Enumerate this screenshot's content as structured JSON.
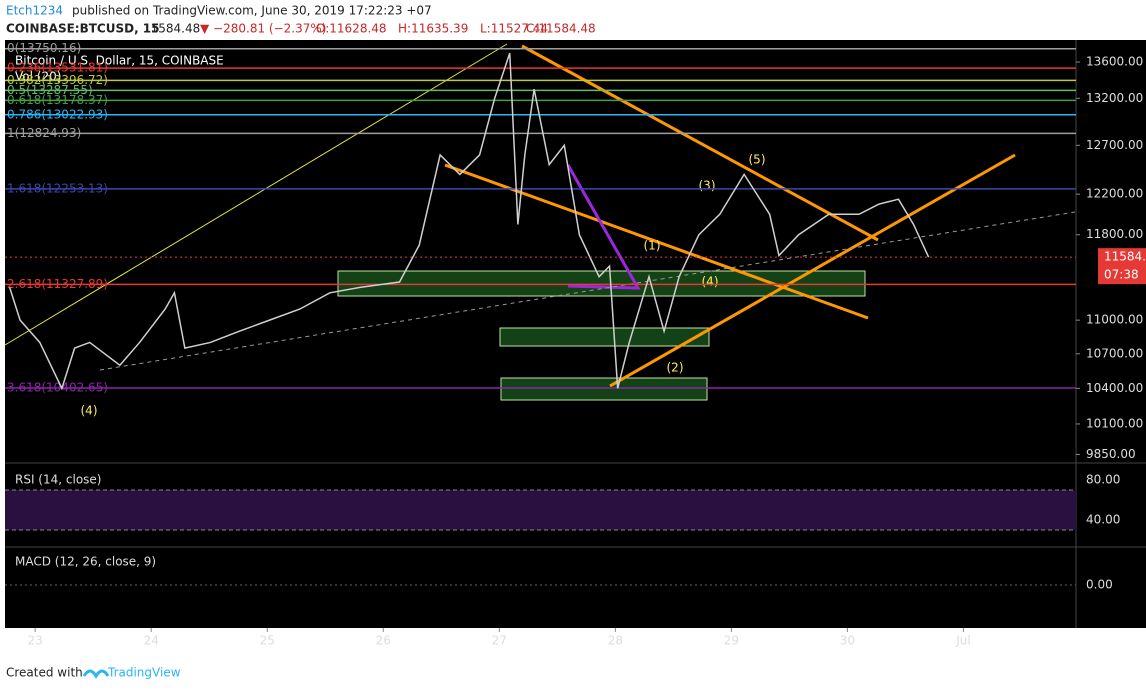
{
  "header": {
    "publisher": "Etch1234",
    "published": "published on TradingView.com, June 30, 2019 17:22:23 +07",
    "symbol": "COINBASE:BTCUSD, 15",
    "price": "11584.48",
    "change": "▼ −280.81 (−2.37%)",
    "open": "O:11628.48",
    "high": "H:11635.39",
    "low": "L:11527.44",
    "close": "C:11584.48"
  },
  "legend": {
    "title": "Bitcoin / U.S. Dollar, 15, COINBASE",
    "volume": "Vol (20)"
  },
  "chart_data": {
    "type": "line",
    "log_scale": true,
    "color": "#d0d0d0",
    "x": [
      22.78,
      22.87,
      23.04,
      23.23,
      23.34,
      23.47,
      23.73,
      23.9,
      24.12,
      24.2,
      24.29,
      24.51,
      24.76,
      25.02,
      25.28,
      25.54,
      25.8,
      26.14,
      26.31,
      26.49,
      26.66,
      26.83,
      26.96,
      27.09,
      27.16,
      27.22,
      27.3,
      27.43,
      27.56,
      27.69,
      27.86,
      27.95,
      28.02,
      28.12,
      28.29,
      28.42,
      28.55,
      28.72,
      28.9,
      29.11,
      29.33,
      29.41,
      29.58,
      29.84,
      30.1,
      30.27,
      30.44,
      30.57,
      30.7
    ],
    "values": [
      11300,
      11000,
      10800,
      10400,
      10750,
      10800,
      10600,
      10800,
      11100,
      11250,
      10750,
      10800,
      10900,
      11000,
      11100,
      11250,
      11300,
      11350,
      11700,
      12600,
      12400,
      12600,
      13200,
      13700,
      11900,
      12600,
      13300,
      12500,
      12700,
      11800,
      11400,
      11500,
      10400,
      10800,
      11400,
      10900,
      11400,
      11800,
      12000,
      12400,
      12000,
      11600,
      11800,
      12000,
      12000,
      12100,
      12150,
      11900,
      11584.48
    ],
    "xlim": [
      22.74,
      31.97
    ],
    "ylim": [
      9789,
      13826
    ],
    "xticks": [
      23,
      24,
      25,
      26,
      27,
      28,
      29,
      30,
      {
        "value": 31,
        "label": "Jul"
      }
    ],
    "yticks": [
      {
        "value": 13600,
        "label": "13600.00"
      },
      {
        "value": 13200,
        "label": "13200.00"
      },
      {
        "value": 12700,
        "label": "12700.00"
      },
      {
        "value": 12200,
        "label": "12200.00"
      },
      {
        "value": 11800,
        "label": "11800.00"
      },
      {
        "value": 11000,
        "label": "11000.00"
      },
      {
        "value": 10700,
        "label": "10700.00"
      },
      {
        "value": 10400,
        "label": "10400.00"
      },
      {
        "value": 10100,
        "label": "10100.00"
      },
      {
        "value": 9850,
        "label": "9850.00"
      }
    ],
    "last_price": {
      "value": 11584.48,
      "label": "11584.48"
    },
    "countdown": "07:38",
    "fib_levels": [
      {
        "value": 13750.16,
        "label": "0(13750.16)",
        "color": "#9e9e9e"
      },
      {
        "value": 13531.81,
        "label": "0.236(13531.81)",
        "color": "#e53935"
      },
      {
        "value": 13396.72,
        "label": "0.382(13396.72)",
        "color": "#c0ca33"
      },
      {
        "value": 13287.55,
        "label": "0.5(13287.55)",
        "color": "#66bb6a"
      },
      {
        "value": 13178.37,
        "label": "0.618(13178.37)",
        "color": "#43a047"
      },
      {
        "value": 13022.93,
        "label": "0.786(13022.93)",
        "color": "#29b6f6"
      },
      {
        "value": 12824.93,
        "label": "1(12824.93)",
        "color": "#9e9e9e"
      },
      {
        "value": 12253.13,
        "label": "1.618(12253.13)",
        "color": "#3949ab"
      },
      {
        "value": 11327.89,
        "label": "2.618(11327.89)",
        "color": "#e53935"
      },
      {
        "value": 10402.65,
        "label": "3.618(10402.65)",
        "color": "#8e24aa"
      }
    ]
  },
  "waves": [
    "(4)",
    "(1)",
    "(2)",
    "(3)",
    "(4)",
    "(5)"
  ],
  "rsi": {
    "title": "RSI (14, close)",
    "ylim": [
      15,
      94
    ],
    "yticks": [
      {
        "value": 80,
        "label": "80.00"
      },
      {
        "value": 40,
        "label": "40.00"
      }
    ]
  },
  "macd": {
    "title": "MACD (12, 26, close, 9)",
    "zero": "0.00"
  },
  "footer": {
    "created": "Created with",
    "brand": "TradingView"
  }
}
